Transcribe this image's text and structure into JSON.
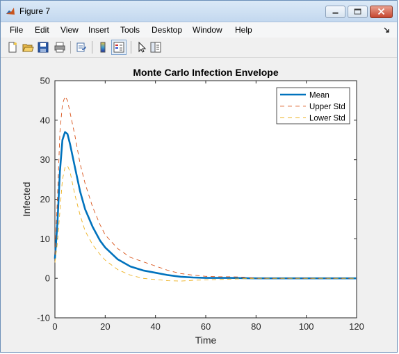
{
  "window": {
    "title": "Figure 7",
    "icon": "matlab-icon",
    "controls": [
      "minimize-icon",
      "maximize-icon",
      "close-icon"
    ]
  },
  "menu": {
    "items": [
      "File",
      "Edit",
      "View",
      "Insert",
      "Tools",
      "Desktop",
      "Window",
      "Help"
    ]
  },
  "toolbar": {
    "buttons": [
      "new-figure-icon",
      "open-icon",
      "save-icon",
      "print-icon",
      "link-icon",
      "colorbar-icon",
      "legend-icon",
      "edit-plot-icon",
      "property-inspector-icon"
    ]
  },
  "colors": {
    "mean": "#0072bd",
    "upper": "#d95319",
    "lower": "#edb120",
    "axes_bg": "#ffffff",
    "figure_bg": "#f0f0f0"
  },
  "chart_data": {
    "type": "line",
    "title": "Monte Carlo Infection Envelope",
    "xlabel": "Time",
    "ylabel": "Infected",
    "xlim": [
      0,
      120
    ],
    "ylim": [
      -10,
      50
    ],
    "xticks": [
      "0",
      "20",
      "40",
      "60",
      "80",
      "100",
      "120"
    ],
    "yticks": [
      "-10",
      "0",
      "10",
      "20",
      "30",
      "40",
      "50"
    ],
    "grid": false,
    "legend_position": "top-right",
    "x": [
      0,
      1,
      2,
      3,
      4,
      5,
      6,
      8,
      10,
      12,
      15,
      18,
      20,
      25,
      30,
      35,
      40,
      45,
      50,
      55,
      60,
      65,
      70,
      75,
      80,
      90,
      100,
      110,
      120
    ],
    "series": [
      {
        "name": "Mean",
        "style": "solid",
        "values": [
          5,
          14,
          27,
          35,
          37,
          36.5,
          34,
          28,
          22,
          17.5,
          13,
          9.5,
          7.8,
          4.8,
          3.0,
          2.0,
          1.4,
          0.8,
          0.4,
          0.2,
          0.1,
          0.1,
          0.1,
          0.05,
          0,
          0,
          0,
          0,
          0
        ]
      },
      {
        "name": "Upper Std",
        "style": "dashed",
        "values": [
          6,
          20,
          37,
          44,
          46,
          45,
          42,
          36,
          29,
          24,
          18,
          13.5,
          11,
          7.5,
          5.3,
          4.2,
          3.1,
          2.0,
          1.2,
          0.8,
          0.5,
          0.4,
          0.4,
          0.3,
          0,
          0,
          0,
          0,
          0
        ]
      },
      {
        "name": "Lower Std",
        "style": "dashed",
        "values": [
          4,
          9,
          17,
          25,
          28,
          28.5,
          27,
          21,
          16,
          12,
          8.5,
          6,
          4.6,
          2.2,
          0.8,
          0.0,
          -0.3,
          -0.6,
          -0.7,
          -0.5,
          -0.4,
          -0.3,
          -0.2,
          -0.1,
          0,
          0,
          0,
          0,
          0
        ]
      }
    ]
  }
}
